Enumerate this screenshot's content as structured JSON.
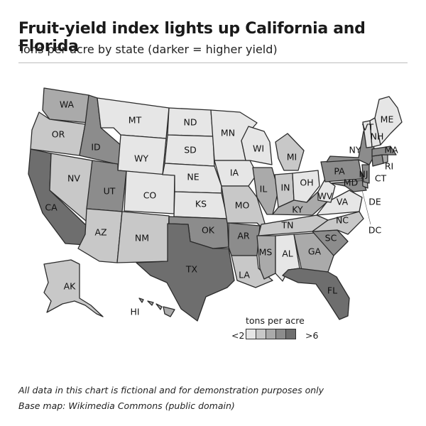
{
  "header": {
    "title": "Fruit-yield index lights up California and Florida",
    "subtitle": "Tons per acre by state (darker = higher yield)"
  },
  "legend": {
    "title": "tons per acre",
    "low_label": "<2",
    "high_label": ">6",
    "colors": [
      "#e6e6e6",
      "#c8c8c8",
      "#aaaaaa",
      "#8c8c8c",
      "#6e6e6e"
    ]
  },
  "footer": {
    "line1": "All data in this chart is fictional and for demonstration purposes only",
    "line2": "Base map: Wikimedia Commons (public domain)"
  },
  "map_data": {
    "type": "choropleth",
    "value_unit": "tons per acre",
    "states": [
      {
        "code": "WA",
        "level": 3
      },
      {
        "code": "OR",
        "level": 2
      },
      {
        "code": "CA",
        "level": 5
      },
      {
        "code": "NV",
        "level": 2
      },
      {
        "code": "ID",
        "level": 4
      },
      {
        "code": "MT",
        "level": 1
      },
      {
        "code": "WY",
        "level": 1
      },
      {
        "code": "UT",
        "level": 4
      },
      {
        "code": "AZ",
        "level": 2
      },
      {
        "code": "CO",
        "level": 1
      },
      {
        "code": "NM",
        "level": 2
      },
      {
        "code": "ND",
        "level": 1
      },
      {
        "code": "SD",
        "level": 1
      },
      {
        "code": "NE",
        "level": 1
      },
      {
        "code": "KS",
        "level": 1
      },
      {
        "code": "OK",
        "level": 4
      },
      {
        "code": "TX",
        "level": 5
      },
      {
        "code": "MN",
        "level": 1
      },
      {
        "code": "IA",
        "level": 1
      },
      {
        "code": "MO",
        "level": 2
      },
      {
        "code": "AR",
        "level": 4
      },
      {
        "code": "LA",
        "level": 2
      },
      {
        "code": "WI",
        "level": 1
      },
      {
        "code": "IL",
        "level": 3
      },
      {
        "code": "MI",
        "level": 2
      },
      {
        "code": "IN",
        "level": 2
      },
      {
        "code": "OH",
        "level": 1
      },
      {
        "code": "KY",
        "level": 3
      },
      {
        "code": "TN",
        "level": 2
      },
      {
        "code": "MS",
        "level": 3
      },
      {
        "code": "AL",
        "level": 1
      },
      {
        "code": "GA",
        "level": 3
      },
      {
        "code": "FL",
        "level": 5
      },
      {
        "code": "SC",
        "level": 4
      },
      {
        "code": "NC",
        "level": 2
      },
      {
        "code": "VA",
        "level": 1
      },
      {
        "code": "WV",
        "level": 1
      },
      {
        "code": "PA",
        "level": 4
      },
      {
        "code": "NY",
        "level": 4
      },
      {
        "code": "MD",
        "level": 4
      },
      {
        "code": "DE",
        "level": 3
      },
      {
        "code": "NJ",
        "level": 4
      },
      {
        "code": "CT",
        "level": 4
      },
      {
        "code": "RI",
        "level": 3
      },
      {
        "code": "MA",
        "level": 4
      },
      {
        "code": "VT",
        "level": 1
      },
      {
        "code": "NH",
        "level": 1
      },
      {
        "code": "ME",
        "level": 1
      },
      {
        "code": "AK",
        "level": 2
      },
      {
        "code": "HI",
        "level": 3
      },
      {
        "code": "DC",
        "level": 3
      }
    ]
  }
}
